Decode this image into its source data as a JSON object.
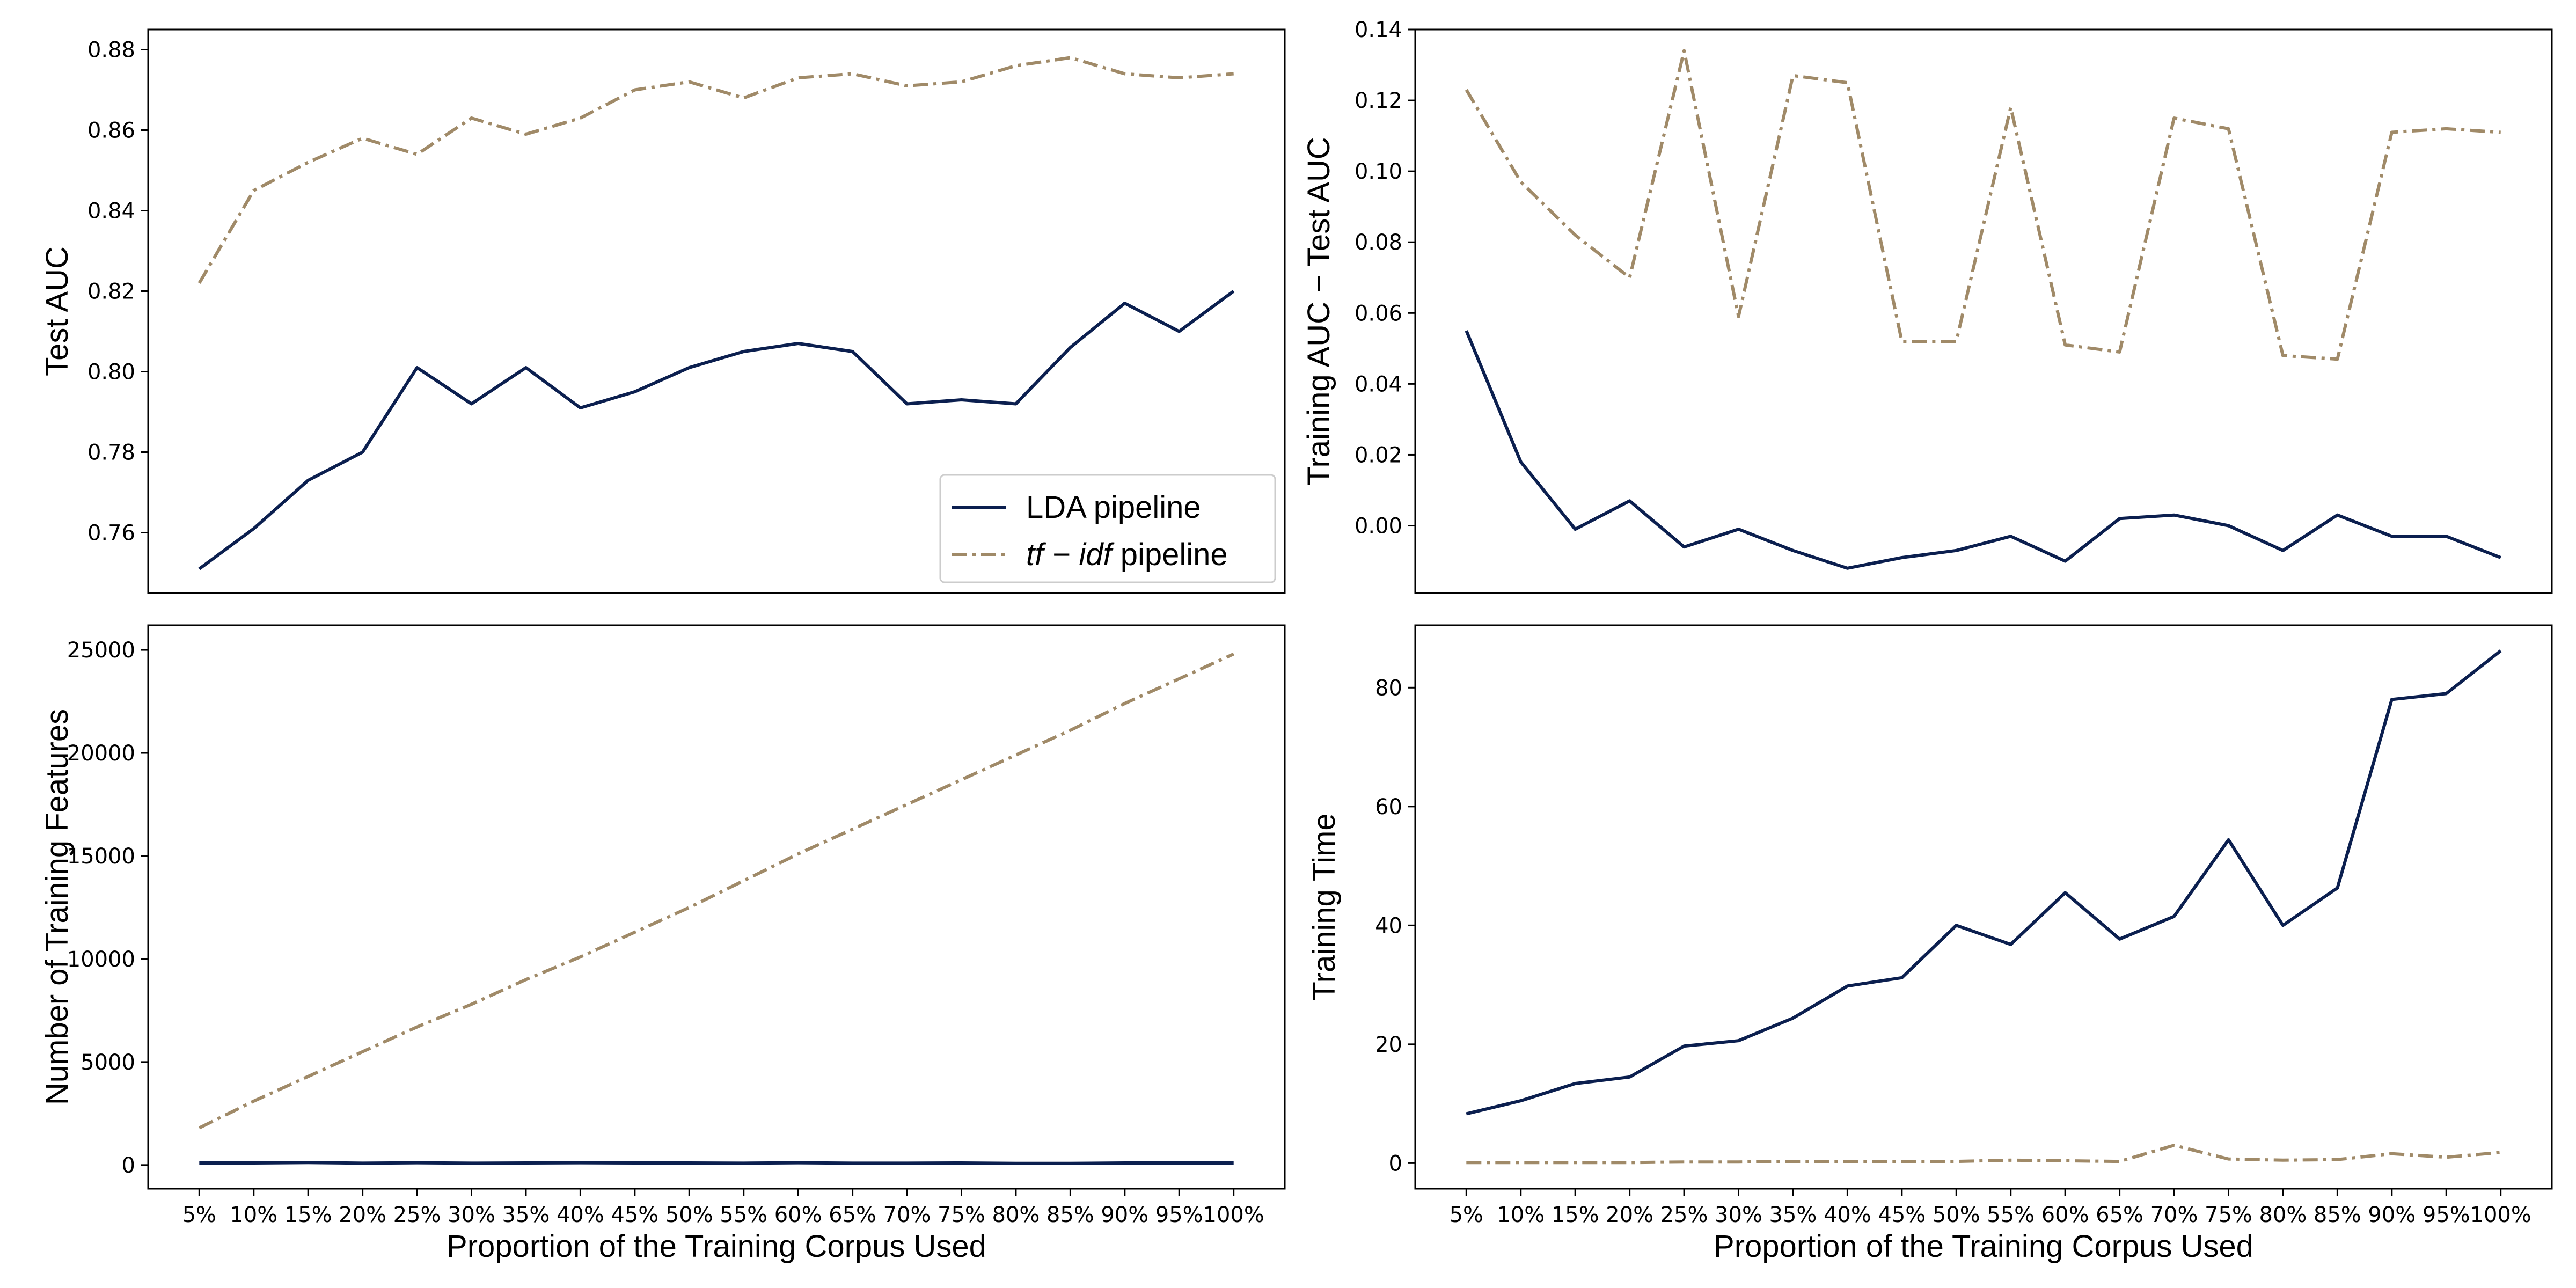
{
  "colors": {
    "lda": "#0b1f4f",
    "tfidf": "#a08a68"
  },
  "x_categories": [
    "5%",
    "10%",
    "15%",
    "20%",
    "25%",
    "30%",
    "35%",
    "40%",
    "45%",
    "50%",
    "55%",
    "60%",
    "65%",
    "70%",
    "75%",
    "80%",
    "85%",
    "90%",
    "95%",
    "100%"
  ],
  "legend": {
    "position": "lower-right",
    "lda_label": "LDA pipeline",
    "tfidf_italic": "tf − idf",
    "tfidf_suffix": " pipeline"
  },
  "chart_data": [
    {
      "type": "line",
      "xlabel": "",
      "ylabel": "Test AUC",
      "ylim": [
        0.745,
        0.885
      ],
      "yticks": [
        0.76,
        0.78,
        0.8,
        0.82,
        0.84,
        0.86,
        0.88
      ],
      "ytick_labels": [
        "0.76",
        "0.78",
        "0.80",
        "0.82",
        "0.84",
        "0.86",
        "0.88"
      ],
      "legend": true,
      "series": [
        {
          "name": "LDA pipeline",
          "style": "solid",
          "color_key": "lda",
          "values": [
            0.751,
            0.761,
            0.773,
            0.78,
            0.801,
            0.792,
            0.801,
            0.791,
            0.795,
            0.801,
            0.805,
            0.807,
            0.805,
            0.792,
            0.793,
            0.792,
            0.806,
            0.817,
            0.81,
            0.82
          ]
        },
        {
          "name": "tf − idf pipeline",
          "style": "dashdot",
          "color_key": "tfidf",
          "values": [
            0.822,
            0.845,
            0.852,
            0.858,
            0.854,
            0.863,
            0.859,
            0.863,
            0.87,
            0.872,
            0.868,
            0.873,
            0.874,
            0.871,
            0.872,
            0.876,
            0.878,
            0.874,
            0.873,
            0.874
          ]
        }
      ]
    },
    {
      "type": "line",
      "xlabel": "",
      "ylabel": "Training AUC − Test AUC",
      "ylim": [
        -0.019,
        0.14
      ],
      "yticks": [
        0.0,
        0.02,
        0.04,
        0.06,
        0.08,
        0.1,
        0.12,
        0.14
      ],
      "ytick_labels": [
        "0.00",
        "0.02",
        "0.04",
        "0.06",
        "0.08",
        "0.10",
        "0.12",
        "0.14"
      ],
      "legend": false,
      "series": [
        {
          "name": "LDA pipeline",
          "style": "solid",
          "color_key": "lda",
          "values": [
            0.055,
            0.018,
            -0.001,
            0.007,
            -0.006,
            -0.001,
            -0.007,
            -0.012,
            -0.009,
            -0.007,
            -0.003,
            -0.01,
            0.002,
            0.003,
            0.0,
            -0.007,
            0.003,
            -0.003,
            -0.003,
            -0.009
          ]
        },
        {
          "name": "tf − idf pipeline",
          "style": "dashdot",
          "color_key": "tfidf",
          "values": [
            0.123,
            0.097,
            0.082,
            0.07,
            0.134,
            0.059,
            0.127,
            0.125,
            0.052,
            0.052,
            0.118,
            0.051,
            0.049,
            0.115,
            0.112,
            0.048,
            0.047,
            0.111,
            0.112,
            0.111
          ]
        }
      ]
    },
    {
      "type": "line",
      "xlabel": "Proportion of the Training Corpus Used",
      "ylabel": "Number of Training Features",
      "ylim": [
        -1150,
        26200
      ],
      "yticks": [
        0,
        5000,
        10000,
        15000,
        20000,
        25000
      ],
      "ytick_labels": [
        "0",
        "5000",
        "10000",
        "15000",
        "20000",
        "25000"
      ],
      "legend": false,
      "series": [
        {
          "name": "LDA pipeline",
          "style": "solid",
          "color_key": "lda",
          "values": [
            100,
            100,
            120,
            90,
            110,
            90,
            100,
            110,
            100,
            100,
            90,
            110,
            90,
            90,
            100,
            80,
            80,
            100,
            100,
            100
          ]
        },
        {
          "name": "tf − idf pipeline",
          "style": "dashdot",
          "color_key": "tfidf",
          "values": [
            1800,
            3100,
            4300,
            5500,
            6700,
            7800,
            9000,
            10100,
            11300,
            12500,
            13800,
            15100,
            16300,
            17500,
            18700,
            19900,
            21100,
            22400,
            23600,
            24800
          ]
        }
      ]
    },
    {
      "type": "line",
      "xlabel": "Proportion of the Training Corpus Used",
      "ylabel": "Training Time",
      "ylim": [
        -4.3,
        90.5
      ],
      "yticks": [
        0,
        20,
        40,
        60,
        80
      ],
      "ytick_labels": [
        "0",
        "20",
        "40",
        "60",
        "80"
      ],
      "legend": false,
      "series": [
        {
          "name": "LDA pipeline",
          "style": "solid",
          "color_key": "lda",
          "values": [
            8.3,
            10.5,
            13.4,
            14.5,
            19.7,
            20.6,
            24.4,
            29.8,
            31.2,
            40.0,
            36.8,
            45.5,
            37.7,
            41.5,
            54.4,
            40.0,
            46.3,
            78.0,
            79.0,
            86.2
          ]
        },
        {
          "name": "tf − idf pipeline",
          "style": "dashdot",
          "color_key": "tfidf",
          "values": [
            0.1,
            0.1,
            0.1,
            0.1,
            0.2,
            0.2,
            0.3,
            0.3,
            0.3,
            0.3,
            0.5,
            0.4,
            0.3,
            3.0,
            0.7,
            0.5,
            0.6,
            1.6,
            1.0,
            1.8
          ]
        }
      ]
    }
  ]
}
